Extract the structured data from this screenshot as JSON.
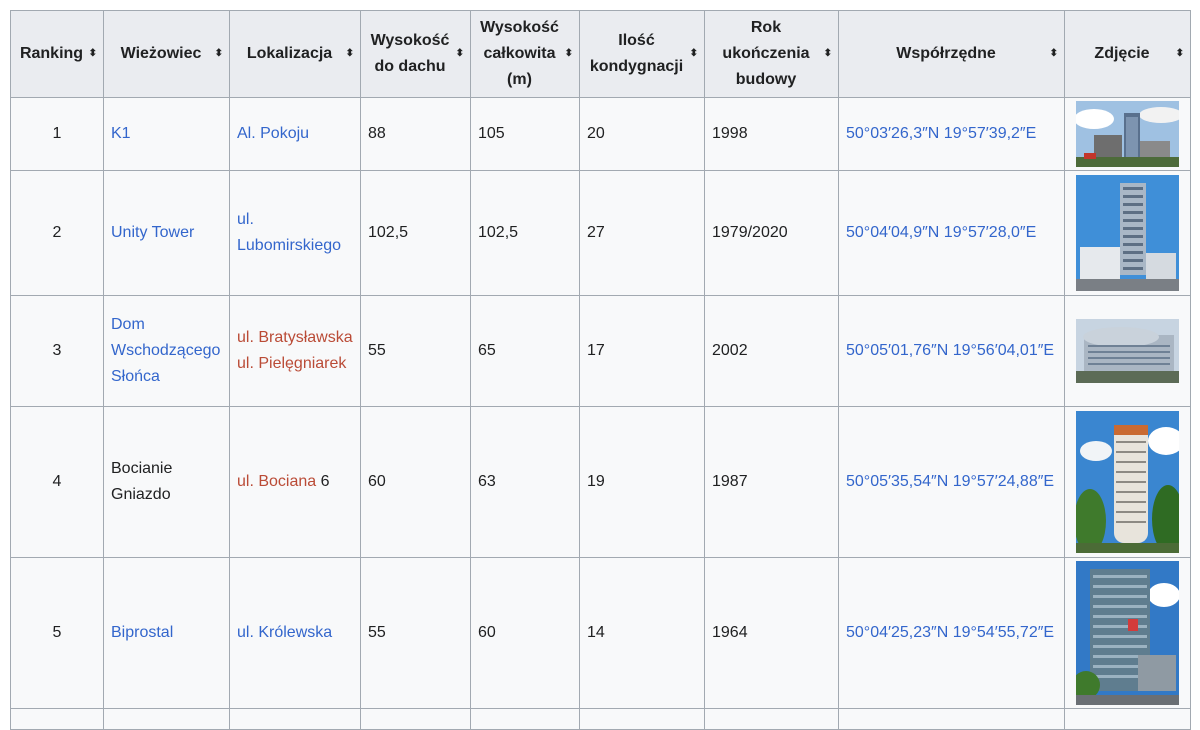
{
  "columns": [
    {
      "label": "Ranking"
    },
    {
      "label": "Wieżowiec"
    },
    {
      "label": "Lokalizacja"
    },
    {
      "label": "Wysokość do dachu"
    },
    {
      "label": "Wysokość całkowita (m)"
    },
    {
      "label": "Ilość kondygnacji"
    },
    {
      "label": "Rok ukończenia budowy"
    },
    {
      "label": "Współrzędne"
    },
    {
      "label": "Zdjęcie"
    }
  ],
  "rows": [
    {
      "rank": "1",
      "name": "K1",
      "loc1": "Al. Pokoju",
      "loc2": "",
      "roof": "88",
      "total": "105",
      "floors": "20",
      "year": "1998",
      "coords": "50°03′26,3″N 19°57′39,2″E"
    },
    {
      "rank": "2",
      "name": "Unity Tower",
      "loc1": "ul. Lubomirskiego",
      "loc2": "",
      "roof": "102,5",
      "total": "102,5",
      "floors": "27",
      "year": "1979/2020",
      "coords": "50°04′04,9″N 19°57′28,0″E"
    },
    {
      "rank": "3",
      "name": "Dom Wschodzącego Słońca",
      "loc1": "ul. Bratysławska",
      "loc2": "ul. Pielęgniarek",
      "roof": "55",
      "total": "65",
      "floors": "17",
      "year": "2002",
      "coords": "50°05′01,76″N 19°56′04,01″E"
    },
    {
      "rank": "4",
      "name": "Bocianie Gniazdo",
      "loc1": "ul. Bociana",
      "loc1_suffix": " 6",
      "loc2": "",
      "roof": "60",
      "total": "63",
      "floors": "19",
      "year": "1987",
      "coords": "50°05′35,54″N 19°57′24,88″E"
    },
    {
      "rank": "5",
      "name": "Biprostal",
      "loc1": "ul. Królewska",
      "loc2": "",
      "roof": "55",
      "total": "60",
      "floors": "14",
      "year": "1964",
      "coords": "50°04′25,23″N 19°54′55,72″E"
    }
  ],
  "colors": {
    "link": "#3366cc",
    "redlink": "#ba4b36",
    "header_bg": "#eaecf0",
    "border": "#a2a9b1"
  }
}
